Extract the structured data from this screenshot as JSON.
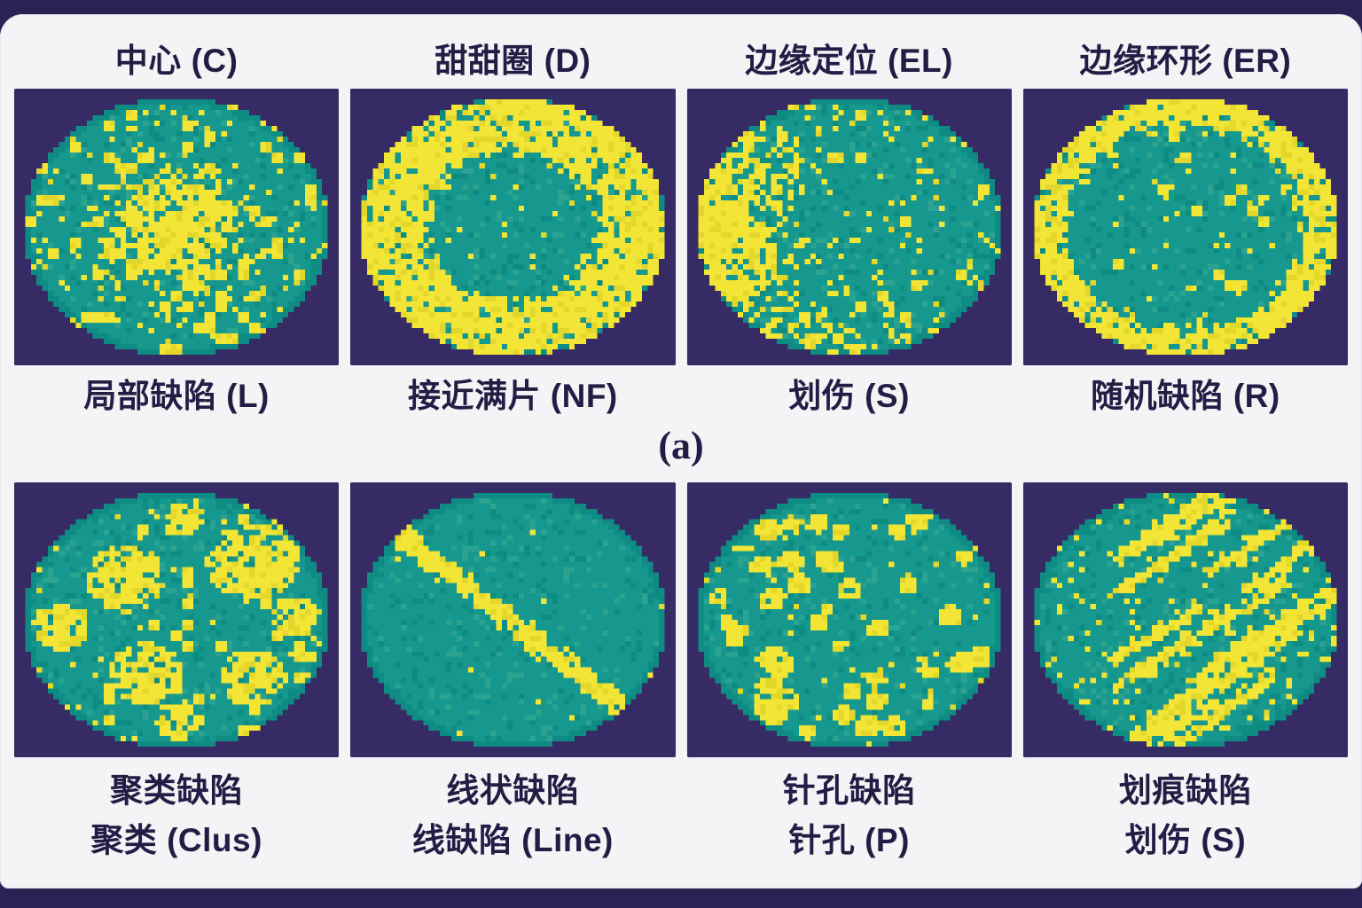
{
  "figure": {
    "marker_a": "(a)",
    "colors": {
      "frame": "#2b2153",
      "card_bg": "#f5f3f6",
      "panel_bg": "#362b64",
      "wafer_teal": "#16988e",
      "wafer_teal_dark": "#0e8b83",
      "wafer_teal_light": "#2ba390",
      "defect_yellow": "#f2e535",
      "defect_yellow_dark": "#e4d72c",
      "label_text": "#241c44"
    },
    "top_section": {
      "column_titles": [
        "中心 (C)",
        "甜甜圈 (D)",
        "边缘定位 (EL)",
        "边缘环形 (ER)"
      ],
      "caption_labels": [
        "局部缺陷 (L)",
        "接近满片 (NF)",
        "划伤 (S)",
        "随机缺陷 (R)"
      ],
      "wafers": [
        {
          "name": "center-defect-wafer",
          "pattern": "center",
          "seed": 11
        },
        {
          "name": "donut-defect-wafer",
          "pattern": "donut",
          "seed": 22
        },
        {
          "name": "edge-loc-defect-wafer",
          "pattern": "edge-loc",
          "seed": 33
        },
        {
          "name": "edge-ring-defect-wafer",
          "pattern": "edge-ring",
          "seed": 44
        }
      ]
    },
    "bottom_section": {
      "captions": [
        {
          "line1": "聚类缺陷",
          "line2": "聚类 (Clus)"
        },
        {
          "line1": "线状缺陷",
          "line2": "线缺陷 (Line)"
        },
        {
          "line1": "针孔缺陷",
          "line2": "针孔 (P)"
        },
        {
          "line1": "划痕缺陷",
          "line2": "划伤 (S)"
        }
      ],
      "wafers": [
        {
          "name": "cluster-defect-wafer",
          "pattern": "cluster",
          "seed": 55
        },
        {
          "name": "line-defect-wafer",
          "pattern": "line",
          "seed": 66
        },
        {
          "name": "pinhole-defect-wafer",
          "pattern": "pinhole",
          "seed": 77
        },
        {
          "name": "scratch-defect-wafer",
          "pattern": "scratch",
          "seed": 88
        }
      ]
    }
  }
}
